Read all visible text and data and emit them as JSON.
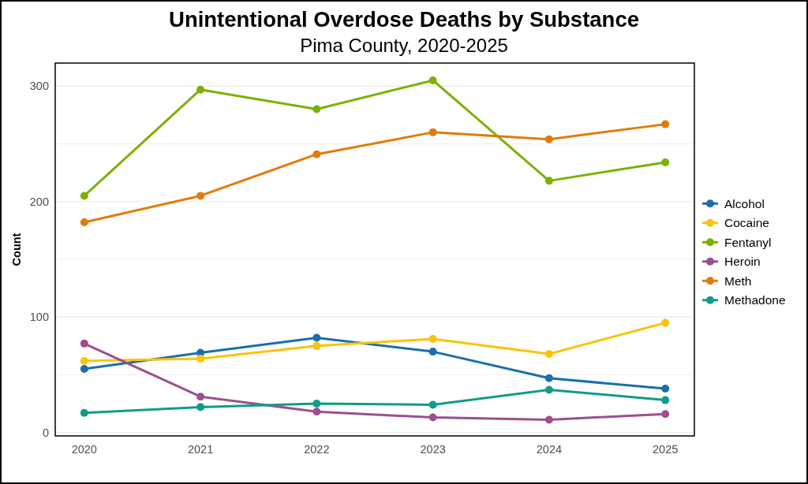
{
  "chart_data": {
    "type": "line",
    "title": "Unintentional Overdose Deaths by Substance",
    "subtitle": "Pima County, 2020-2025",
    "ylabel": "Count",
    "x": [
      2020,
      2021,
      2022,
      2023,
      2024,
      2025
    ],
    "xlim": [
      2019.75,
      2025.25
    ],
    "xticks": [
      2020,
      2021,
      2022,
      2023,
      2024,
      2025
    ],
    "ylim": [
      -3,
      320
    ],
    "yticks": [
      0,
      {
        "value": 50,
        "label": null
      },
      100,
      {
        "value": 150,
        "label": null
      },
      200,
      {
        "value": 250,
        "label": null
      },
      300
    ],
    "grid": "y",
    "legend": "right",
    "marker": "circle",
    "line_style": "solid",
    "series": [
      {
        "name": "Alcohol",
        "color": "#1a6fab",
        "values": [
          55,
          69,
          82,
          70,
          47,
          38
        ]
      },
      {
        "name": "Cocaine",
        "color": "#fcc30a",
        "values": [
          62,
          64,
          75,
          81,
          68,
          95
        ]
      },
      {
        "name": "Fentanyl",
        "color": "#7cb105",
        "values": [
          205,
          297,
          280,
          305,
          218,
          234
        ]
      },
      {
        "name": "Heroin",
        "color": "#9c4f8f",
        "values": [
          77,
          31,
          18,
          13,
          11,
          16
        ]
      },
      {
        "name": "Meth",
        "color": "#e17c0b",
        "values": [
          182,
          205,
          241,
          260,
          254,
          267
        ]
      },
      {
        "name": "Methadone",
        "color": "#0f9d87",
        "values": [
          17,
          22,
          25,
          24,
          37,
          28
        ]
      }
    ]
  }
}
